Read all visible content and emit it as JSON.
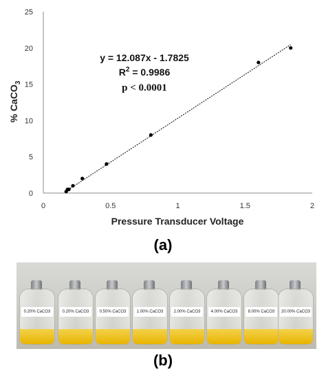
{
  "chart_data": {
    "type": "scatter",
    "x": [
      0.17,
      0.18,
      0.19,
      0.22,
      0.29,
      0.47,
      0.8,
      1.6,
      1.84
    ],
    "y": [
      0.2,
      0.5,
      0.5,
      1.0,
      2.0,
      4.0,
      8.0,
      18.0,
      20.0
    ],
    "trendline": {
      "slope": 12.087,
      "intercept": -1.7825,
      "x_range": [
        0.17,
        1.84
      ]
    },
    "xlim": [
      0,
      2
    ],
    "ylim": [
      0,
      25
    ],
    "xticks": [
      "0",
      "0.5",
      "1",
      "1.5",
      "2"
    ],
    "yticks": [
      "0",
      "5",
      "10",
      "15",
      "20",
      "25"
    ],
    "xlabel": "Pressure Transducer Voltage",
    "ylabel_main": "% CaCO",
    "ylabel_sub": "3",
    "annotations": {
      "equation": "y = 12.087x - 1.7825",
      "r2_label": "R",
      "r2_sup": "2",
      "r2_value": " = 0.9986",
      "pvalue": "p < 0.0001"
    },
    "grid": false,
    "marker_color": "#000000",
    "trendline_color": "#000000"
  },
  "panels": {
    "a_label": "(a)",
    "b_label": "(b)"
  },
  "photo": {
    "bottle_labels": [
      "0.20% CaCO3",
      "0.20% CaCO3",
      "0.50% CaCO3",
      "1.00% CaCO3",
      "2.00% CaCO3",
      "4.00% CaCO3",
      "8.00% CaCO3",
      "20.00% CaCO3"
    ]
  }
}
